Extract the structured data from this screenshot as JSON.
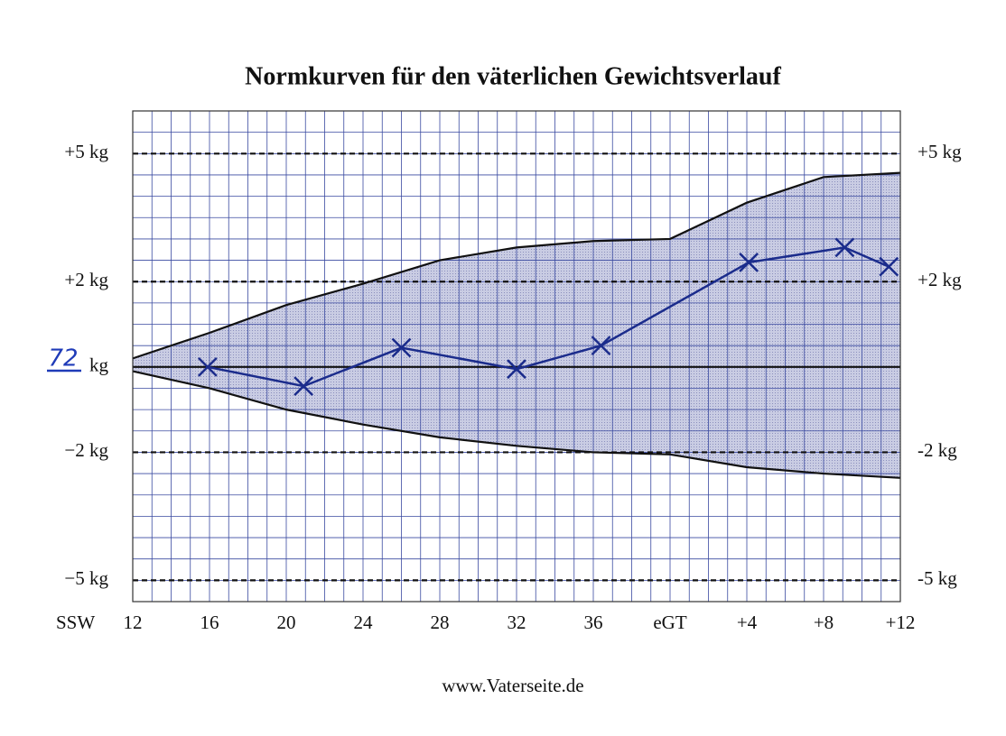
{
  "chart_data": {
    "type": "line",
    "title": "Normkurven für den väterlichen Gewichtsverlauf",
    "footer": "www.Vaterseite.de",
    "x_label": "SSW",
    "annotation": "72",
    "xlim": [
      12,
      52
    ],
    "xticks": [
      12,
      16,
      20,
      24,
      28,
      32,
      36,
      {
        "value": 40,
        "label": "eGT"
      },
      {
        "value": 44,
        "label": "+4"
      },
      {
        "value": 48,
        "label": "+8"
      },
      {
        "value": 52,
        "label": "+12"
      }
    ],
    "ylim": [
      -5.5,
      6
    ],
    "yticks": [
      {
        "value": 5,
        "label": "+5 kg"
      },
      {
        "value": 2,
        "label": "+2 kg"
      },
      {
        "value": 0,
        "label": "kg"
      },
      {
        "value": -2,
        "label": "−2 kg"
      },
      {
        "value": -5,
        "label": "−5 kg"
      }
    ],
    "y2lim": [
      -5.5,
      6
    ],
    "y2ticks": [
      {
        "value": 5,
        "label": "+5 kg"
      },
      {
        "value": 2,
        "label": "+2 kg"
      },
      {
        "value": -2,
        "label": "-2 kg"
      },
      {
        "value": -5,
        "label": "-5 kg"
      }
    ],
    "band": {
      "color": "#c9cce3",
      "x": [
        12,
        16,
        20,
        24,
        28,
        32,
        36,
        40,
        44,
        48,
        52
      ],
      "upper": [
        0.2,
        0.8,
        1.45,
        1.95,
        2.5,
        2.8,
        2.95,
        3.0,
        3.85,
        4.45,
        4.55
      ],
      "lower": [
        -0.1,
        -0.5,
        -1.0,
        -1.35,
        -1.65,
        -1.85,
        -2.0,
        -2.05,
        -2.35,
        -2.5,
        -2.6
      ]
    },
    "series": [
      {
        "color": "#1b2c8c",
        "x": [
          15.9,
          20.9,
          26.0,
          32.0,
          36.4,
          44.1,
          49.1,
          51.4
        ],
        "values": [
          0.0,
          -0.45,
          0.45,
          -0.05,
          0.5,
          2.45,
          2.8,
          2.35
        ]
      }
    ]
  }
}
